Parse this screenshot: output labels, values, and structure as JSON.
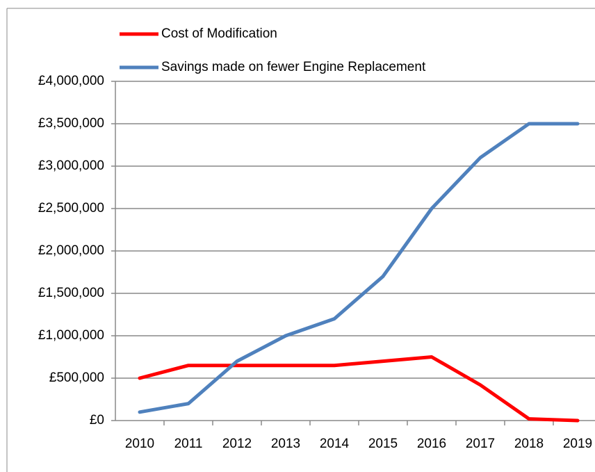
{
  "chart_data": {
    "type": "line",
    "categories": [
      "2010",
      "2011",
      "2012",
      "2013",
      "2014",
      "2015",
      "2016",
      "2017",
      "2018",
      "2019"
    ],
    "series": [
      {
        "name": "Cost of Modification",
        "color": "#ff0000",
        "values": [
          500000,
          650000,
          650000,
          650000,
          650000,
          700000,
          750000,
          420000,
          20000,
          0
        ]
      },
      {
        "name": "Savings made on fewer Engine Replacement",
        "color": "#4f81bd",
        "values": [
          100000,
          200000,
          700000,
          1000000,
          1200000,
          1700000,
          2500000,
          3100000,
          3500000,
          3500000
        ]
      }
    ],
    "ylim": [
      0,
      4000000
    ],
    "yticks": [
      {
        "value": 0,
        "label": "£0"
      },
      {
        "value": 500000,
        "label": "£500,000"
      },
      {
        "value": 1000000,
        "label": "£1,000,000"
      },
      {
        "value": 1500000,
        "label": "£1,500,000"
      },
      {
        "value": 2000000,
        "label": "£2,000,000"
      },
      {
        "value": 2500000,
        "label": "£2,500,000"
      },
      {
        "value": 3000000,
        "label": "£3,000,000"
      },
      {
        "value": 3500000,
        "label": "£3,500,000"
      },
      {
        "value": 4000000,
        "label": "£4,000,000"
      }
    ],
    "grid": true,
    "legend": "top"
  }
}
